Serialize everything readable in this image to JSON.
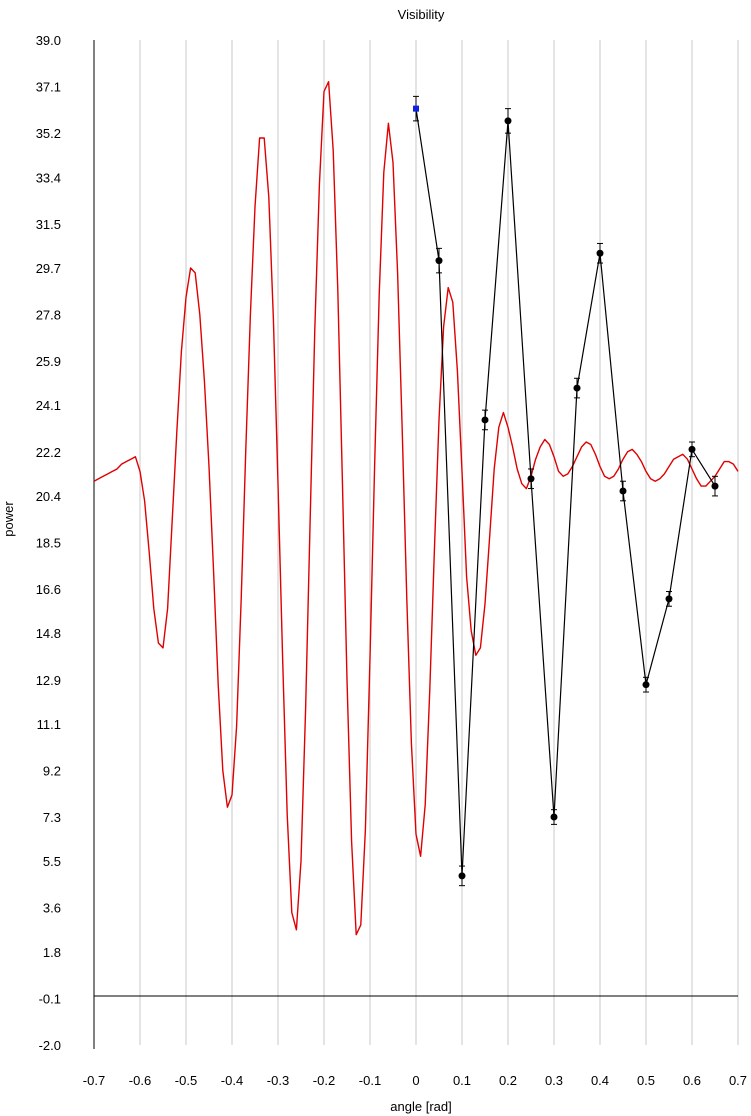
{
  "chart_data": {
    "type": "line",
    "title": "Visibility",
    "xlabel": "angle [rad]",
    "ylabel": "power",
    "xlim": [
      -0.7,
      0.7
    ],
    "ylim": [
      -2.0,
      39.0
    ],
    "x_ticks": [
      -0.7,
      -0.6,
      -0.5,
      -0.4,
      -0.3,
      -0.2,
      -0.1,
      0,
      0.1,
      0.2,
      0.3,
      0.4,
      0.5,
      0.6,
      0.7
    ],
    "x_tick_labels": [
      "-0.7",
      "-0.6",
      "-0.5",
      "-0.4",
      "-0.3",
      "-0.2",
      "-0.1",
      "0",
      "0.1",
      "0.2",
      "0.3",
      "0.4",
      "0.5",
      "0.6",
      "0.7"
    ],
    "y_ticks": [
      39.0,
      37.1,
      35.2,
      33.4,
      31.5,
      29.7,
      27.8,
      25.9,
      24.1,
      22.2,
      20.4,
      18.5,
      16.6,
      14.8,
      12.9,
      11.1,
      9.2,
      7.3,
      5.5,
      3.6,
      1.8,
      -0.1,
      -2.0
    ],
    "y_tick_labels": [
      "39.0",
      "37.1",
      "35.2",
      "33.4",
      "31.5",
      "29.7",
      "27.8",
      "25.9",
      "24.1",
      "22.2",
      "20.4",
      "18.5",
      "16.6",
      "14.8",
      "12.9",
      "11.1",
      "9.2",
      "7.3",
      "5.5",
      "3.6",
      "1.8",
      "-0.1",
      "-2.0"
    ],
    "grid": "vertical",
    "zero_line": 0,
    "series": [
      {
        "kind": "fit-curve",
        "color": "#e00000",
        "x": [
          -0.7,
          -0.69,
          -0.68,
          -0.67,
          -0.66,
          -0.65,
          -0.64,
          -0.63,
          -0.62,
          -0.61,
          -0.6,
          -0.59,
          -0.58,
          -0.57,
          -0.56,
          -0.55,
          -0.54,
          -0.53,
          -0.52,
          -0.51,
          -0.5,
          -0.49,
          -0.48,
          -0.47,
          -0.46,
          -0.45,
          -0.44,
          -0.43,
          -0.42,
          -0.41,
          -0.4,
          -0.39,
          -0.38,
          -0.37,
          -0.36,
          -0.35,
          -0.34,
          -0.33,
          -0.32,
          -0.31,
          -0.3,
          -0.29,
          -0.28,
          -0.27,
          -0.26,
          -0.25,
          -0.24,
          -0.23,
          -0.22,
          -0.21,
          -0.2,
          -0.19,
          -0.18,
          -0.17,
          -0.16,
          -0.15,
          -0.14,
          -0.13,
          -0.12,
          -0.11,
          -0.1,
          -0.09,
          -0.08,
          -0.07,
          -0.06,
          -0.05,
          -0.04,
          -0.03,
          -0.02,
          -0.01,
          0,
          0.01,
          0.02,
          0.03,
          0.04,
          0.05,
          0.06,
          0.07,
          0.08,
          0.09,
          0.1,
          0.11,
          0.12,
          0.13,
          0.14,
          0.15,
          0.16,
          0.17,
          0.18,
          0.19,
          0.2,
          0.21,
          0.22,
          0.23,
          0.24,
          0.25,
          0.26,
          0.27,
          0.28,
          0.29,
          0.3,
          0.31,
          0.32,
          0.33,
          0.34,
          0.35,
          0.36,
          0.37,
          0.38,
          0.39,
          0.4,
          0.41,
          0.42,
          0.43,
          0.44,
          0.45,
          0.46,
          0.47,
          0.48,
          0.49,
          0.5,
          0.51,
          0.52,
          0.53,
          0.54,
          0.55,
          0.56,
          0.57,
          0.58,
          0.59,
          0.6,
          0.61,
          0.62,
          0.63,
          0.64,
          0.65,
          0.66,
          0.67,
          0.68,
          0.69,
          0.7
        ],
        "y": [
          21.0,
          21.1,
          21.2,
          21.3,
          21.4,
          21.5,
          21.7,
          21.8,
          21.9,
          22.0,
          21.4,
          20.2,
          18.1,
          15.8,
          14.4,
          14.2,
          15.8,
          19.4,
          23.0,
          26.3,
          28.5,
          29.7,
          29.5,
          27.8,
          25.1,
          21.6,
          17.3,
          12.7,
          9.2,
          7.7,
          8.2,
          11.0,
          16.2,
          22.3,
          27.8,
          32.2,
          35.0,
          35.0,
          32.6,
          27.6,
          20.9,
          13.8,
          7.4,
          3.4,
          2.7,
          5.5,
          11.7,
          19.5,
          27.2,
          33.1,
          36.9,
          37.3,
          34.5,
          28.8,
          21.0,
          12.9,
          6.3,
          2.5,
          2.9,
          6.8,
          13.8,
          21.6,
          28.6,
          33.6,
          35.6,
          34.0,
          29.5,
          23.1,
          16.2,
          10.3,
          6.6,
          5.7,
          7.8,
          12.5,
          18.2,
          23.5,
          27.3,
          28.9,
          28.3,
          25.5,
          21.4,
          17.1,
          14.9,
          13.9,
          14.2,
          16.0,
          18.7,
          21.5,
          23.2,
          23.8,
          23.2,
          22.4,
          21.5,
          20.9,
          20.7,
          21.2,
          21.9,
          22.4,
          22.7,
          22.5,
          22.0,
          21.4,
          21.2,
          21.3,
          21.6,
          22.0,
          22.4,
          22.6,
          22.5,
          22.1,
          21.6,
          21.2,
          21.1,
          21.2,
          21.5,
          21.9,
          22.2,
          22.3,
          22.1,
          21.8,
          21.4,
          21.1,
          21.0,
          21.1,
          21.3,
          21.6,
          21.9,
          22.0,
          22.1,
          21.9,
          21.5,
          21.1,
          20.8,
          20.8,
          21.0,
          21.2,
          21.5,
          21.8,
          21.8,
          21.7,
          21.4
        ]
      },
      {
        "kind": "measured",
        "color": "#000000",
        "x": [
          0.0,
          0.05,
          0.1,
          0.15,
          0.2,
          0.25,
          0.3,
          0.35,
          0.4,
          0.45,
          0.5,
          0.55,
          0.6,
          0.65
        ],
        "y": [
          36.2,
          30.0,
          4.9,
          23.5,
          35.7,
          21.1,
          7.3,
          24.8,
          30.3,
          20.6,
          12.7,
          16.2,
          22.3,
          20.8
        ],
        "err": [
          0.5,
          0.5,
          0.4,
          0.4,
          0.5,
          0.4,
          0.3,
          0.4,
          0.4,
          0.4,
          0.3,
          0.3,
          0.3,
          0.4
        ]
      }
    ]
  }
}
